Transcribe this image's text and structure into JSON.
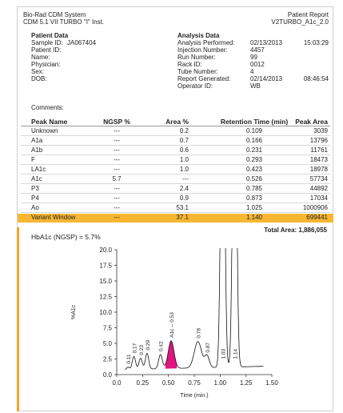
{
  "header": {
    "system": "Bio-Rad CDM System",
    "version": "CDM 5.1 VII TURBO \"I\" Inst.",
    "report": "Patient Report",
    "test": "V2TURBO_A1c_2.0"
  },
  "patient": {
    "heading": "Patient Data",
    "fields": [
      {
        "label": "Sample ID:",
        "value": "JA067404"
      },
      {
        "label": "Patient ID:",
        "value": ""
      },
      {
        "label": "Name:",
        "value": ""
      },
      {
        "label": "Physician:",
        "value": ""
      },
      {
        "label": "Sex:",
        "value": ""
      },
      {
        "label": "DOB:",
        "value": ""
      }
    ],
    "comments_label": "Comments:"
  },
  "analysis": {
    "heading": "Analysis Data",
    "fields": [
      {
        "label": "Analysis Performed:",
        "value": "02/13/2013",
        "value2": "15:03:29"
      },
      {
        "label": "Injection Number:",
        "value": "4457",
        "value2": ""
      },
      {
        "label": "Run Number:",
        "value": "99",
        "value2": ""
      },
      {
        "label": "Rack ID:",
        "value": "0012",
        "value2": ""
      },
      {
        "label": "Tube Number:",
        "value": "4",
        "value2": ""
      },
      {
        "label": "Report Generated:",
        "value": "02/14/2013",
        "value2": "08:46:54"
      },
      {
        "label": "Operator ID:",
        "value": "WB",
        "value2": ""
      }
    ]
  },
  "table": {
    "headers": [
      "Peak Name",
      "NGSP %",
      "Area %",
      "Retention Time (min)",
      "Peak Area"
    ],
    "rows": [
      [
        "Unknown",
        "---",
        "0.2",
        "0.109",
        "3039"
      ],
      [
        "A1a",
        "---",
        "0.7",
        "0.166",
        "13796"
      ],
      [
        "A1b",
        "---",
        "0.6",
        "0.231",
        "11761"
      ],
      [
        "F",
        "---",
        "1.0",
        "0.293",
        "18473"
      ],
      [
        "LA1c",
        "---",
        "1.0",
        "0.423",
        "18978"
      ],
      [
        "A1c",
        "5.7",
        "---",
        "0.526",
        "57734"
      ],
      [
        "P3",
        "---",
        "2.4",
        "0.785",
        "44892"
      ],
      [
        "P4",
        "---",
        "0.9",
        "0.873",
        "17034"
      ],
      [
        "Ao",
        "---",
        "53.1",
        "1.025",
        "1000906"
      ],
      [
        "Variant Window",
        "---",
        "37.1",
        "1.140",
        "699441"
      ]
    ],
    "highlight_color": "#f7b733"
  },
  "total_area": "Total Area: 1,886,055",
  "hba1c": "HbA1c (NGSP) = 5.7%",
  "chart_data": {
    "type": "line",
    "xlabel": "Time (min.)",
    "ylabel": "%A1c",
    "xlim": [
      0.0,
      1.5
    ],
    "ylim": [
      0.0,
      20.0
    ],
    "x_ticks": [
      "0.0",
      "0.25",
      "0.50",
      "0.75",
      "1.00",
      "1.25",
      "1.50"
    ],
    "y_ticks": [
      "0.0",
      "2.5",
      "5.0",
      "7.5",
      "10.0",
      "12.5",
      "15.0",
      "17.5",
      "20.0"
    ],
    "peaks": [
      {
        "label": "0.11",
        "x": 0.109,
        "y": 1.2
      },
      {
        "label": "0.17",
        "x": 0.166,
        "y": 2.9
      },
      {
        "label": "0.23",
        "x": 0.231,
        "y": 2.6
      },
      {
        "label": "0.29",
        "x": 0.293,
        "y": 3.4
      },
      {
        "label": "0.42",
        "x": 0.423,
        "y": 3.2
      },
      {
        "label": "A1c -- 0.53",
        "x": 0.526,
        "y": 5.4
      },
      {
        "label": "0.78",
        "x": 0.785,
        "y": 5.3
      },
      {
        "label": "0.87",
        "x": 0.873,
        "y": 3.0
      },
      {
        "label": "1.03",
        "x": 1.025,
        "y": 20
      },
      {
        "label": "1.14",
        "x": 1.14,
        "y": 20
      }
    ],
    "highlight_peak_color": "#e0157f",
    "grid": false
  }
}
